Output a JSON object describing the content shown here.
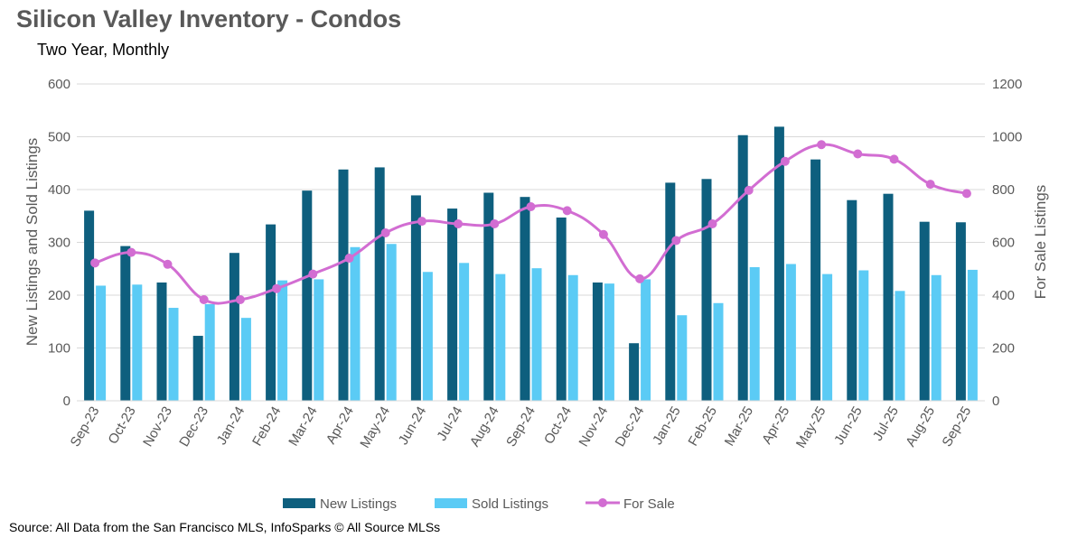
{
  "title": "Silicon Valley Inventory - Condos",
  "subtitle": "Two Year, Monthly",
  "source": "Source: All Data from the San Francisco MLS, InfoSparks © All Source MLSs",
  "colors": {
    "new_listings": "#0E5F7E",
    "sold_listings": "#5BCBF5",
    "for_sale": "#D26DD2",
    "grid": "#D9D9D9",
    "text": "#595959"
  },
  "chart_data": {
    "type": "bar",
    "title": "Silicon Valley Inventory - Condos",
    "subtitle": "Two Year, Monthly",
    "categories": [
      "Sep-23",
      "Oct-23",
      "Nov-23",
      "Dec-23",
      "Jan-24",
      "Feb-24",
      "Mar-24",
      "Apr-24",
      "May-24",
      "Jun-24",
      "Jul-24",
      "Aug-24",
      "Sep-24",
      "Oct-24",
      "Nov-24",
      "Dec-24",
      "Jan-25",
      "Feb-25",
      "Mar-25",
      "Apr-25",
      "May-25",
      "Jun-25",
      "Jul-25",
      "Aug-25",
      "Sep-25"
    ],
    "series": [
      {
        "name": "New Listings",
        "type": "bar",
        "axis": "left",
        "values": [
          360,
          293,
          224,
          123,
          280,
          334,
          398,
          438,
          442,
          389,
          364,
          394,
          386,
          347,
          224,
          109,
          413,
          420,
          503,
          519,
          457,
          380,
          392,
          339,
          338
        ]
      },
      {
        "name": "Sold Listings",
        "type": "bar",
        "axis": "left",
        "values": [
          218,
          220,
          176,
          183,
          157,
          228,
          230,
          291,
          297,
          244,
          261,
          240,
          251,
          238,
          222,
          230,
          162,
          185,
          253,
          259,
          240,
          247,
          208,
          238,
          248
        ]
      },
      {
        "name": "For Sale",
        "type": "line",
        "axis": "right",
        "values": [
          522,
          562,
          517,
          383,
          383,
          425,
          480,
          540,
          636,
          680,
          670,
          670,
          735,
          720,
          630,
          462,
          607,
          670,
          797,
          907,
          970,
          935,
          915,
          820,
          785
        ]
      }
    ],
    "ylabel": "New Listings and Sold Listings",
    "y2label": "For Sale Listings",
    "ylim": [
      0,
      600
    ],
    "y2lim": [
      0,
      1200
    ],
    "yticks": [
      "0",
      "100",
      "200",
      "300",
      "400",
      "500",
      "600"
    ],
    "y2ticks": [
      "0",
      "200",
      "400",
      "600",
      "800",
      "1000",
      "1200"
    ],
    "grid": true,
    "legend_position": "bottom"
  }
}
